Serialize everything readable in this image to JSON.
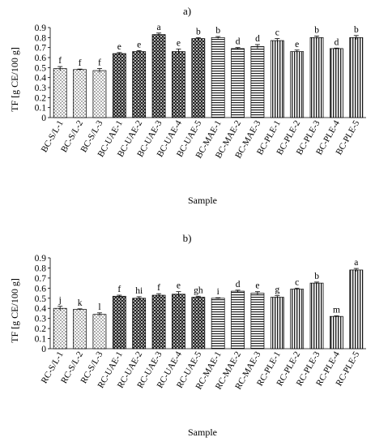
{
  "chart_data": [
    {
      "panel_label": "a)",
      "type": "bar",
      "ylabel": "TF [g CE/100 g]",
      "xlabel": "Sample",
      "ylim": [
        0,
        0.9
      ],
      "yticks": [
        "0",
        "0.1",
        "0.2",
        "0.3",
        "0.4",
        "0.5",
        "0.6",
        "0.7",
        "0.8",
        "0.9"
      ],
      "categories": [
        "BC-S/L-1",
        "BC-S/L-2",
        "BC-S/L-3",
        "BC-UAE-1",
        "BC-UAE-2",
        "BC-UAE-3",
        "BC-UAE-4",
        "BC-UAE-5",
        "BC-MAE-1",
        "BC-MAE-2",
        "BC-MAE-3",
        "BC-PLE-1",
        "BC-PLE-2",
        "BC-PLE-3",
        "BC-PLE-4",
        "BC-PLE-5"
      ],
      "values": [
        0.49,
        0.48,
        0.47,
        0.64,
        0.66,
        0.83,
        0.66,
        0.79,
        0.8,
        0.69,
        0.71,
        0.77,
        0.66,
        0.8,
        0.69,
        0.8
      ],
      "errors": [
        0.02,
        0.005,
        0.02,
        0.01,
        0.01,
        0.015,
        0.025,
        0.01,
        0.01,
        0.01,
        0.02,
        0.02,
        0.015,
        0.015,
        0.005,
        0.02
      ],
      "letters": [
        "f",
        "f",
        "f",
        "e",
        "e",
        "a",
        "e",
        "b",
        "b",
        "d",
        "d",
        "c",
        "e",
        "b",
        "d",
        "b"
      ],
      "patterns": [
        "dots",
        "dots",
        "dots",
        "checker",
        "checker",
        "checker",
        "checker",
        "checker",
        "hlines",
        "hlines",
        "hlines",
        "vlines",
        "vlines",
        "vlines",
        "vlines",
        "vlines"
      ]
    },
    {
      "panel_label": "b)",
      "type": "bar",
      "ylabel": "TF [g CE/100 g]",
      "xlabel": "Sample",
      "ylim": [
        0,
        0.9
      ],
      "yticks": [
        "0",
        "0.1",
        "0.2",
        "0.3",
        "0.4",
        "0.5",
        "0.6",
        "0.7",
        "0.8",
        "0.9"
      ],
      "categories": [
        "RC-S/L-1",
        "RC-S/L-2",
        "RC-S/L-3",
        "RC-UAE-1",
        "RC-UAE-2",
        "RC-UAE-3",
        "RC-UAE-4",
        "RC-UAE-5",
        "RC-MAE-1",
        "RC-MAE-2",
        "RC-MAE-3",
        "RC-PLE-1",
        "RC-PLE-2",
        "RC-PLE-3",
        "RC-PLE-4",
        "RC-PLE-5"
      ],
      "values": [
        0.4,
        0.39,
        0.34,
        0.52,
        0.5,
        0.53,
        0.54,
        0.51,
        0.5,
        0.57,
        0.55,
        0.51,
        0.59,
        0.65,
        0.32,
        0.78
      ],
      "errors": [
        0.02,
        0.005,
        0.015,
        0.01,
        0.015,
        0.015,
        0.025,
        0.01,
        0.005,
        0.01,
        0.015,
        0.015,
        0.01,
        0.01,
        0.005,
        0.015
      ],
      "letters": [
        "j",
        "k",
        "l",
        "f",
        "hi",
        "f",
        "e",
        "gh",
        "i",
        "d",
        "e",
        "g",
        "c",
        "b",
        "m",
        "a"
      ],
      "patterns": [
        "dots",
        "dots",
        "dots",
        "checker",
        "checker",
        "checker",
        "checker",
        "checker",
        "hlines",
        "hlines",
        "hlines",
        "vlines",
        "vlines",
        "vlines",
        "vlines",
        "vlines"
      ]
    }
  ]
}
